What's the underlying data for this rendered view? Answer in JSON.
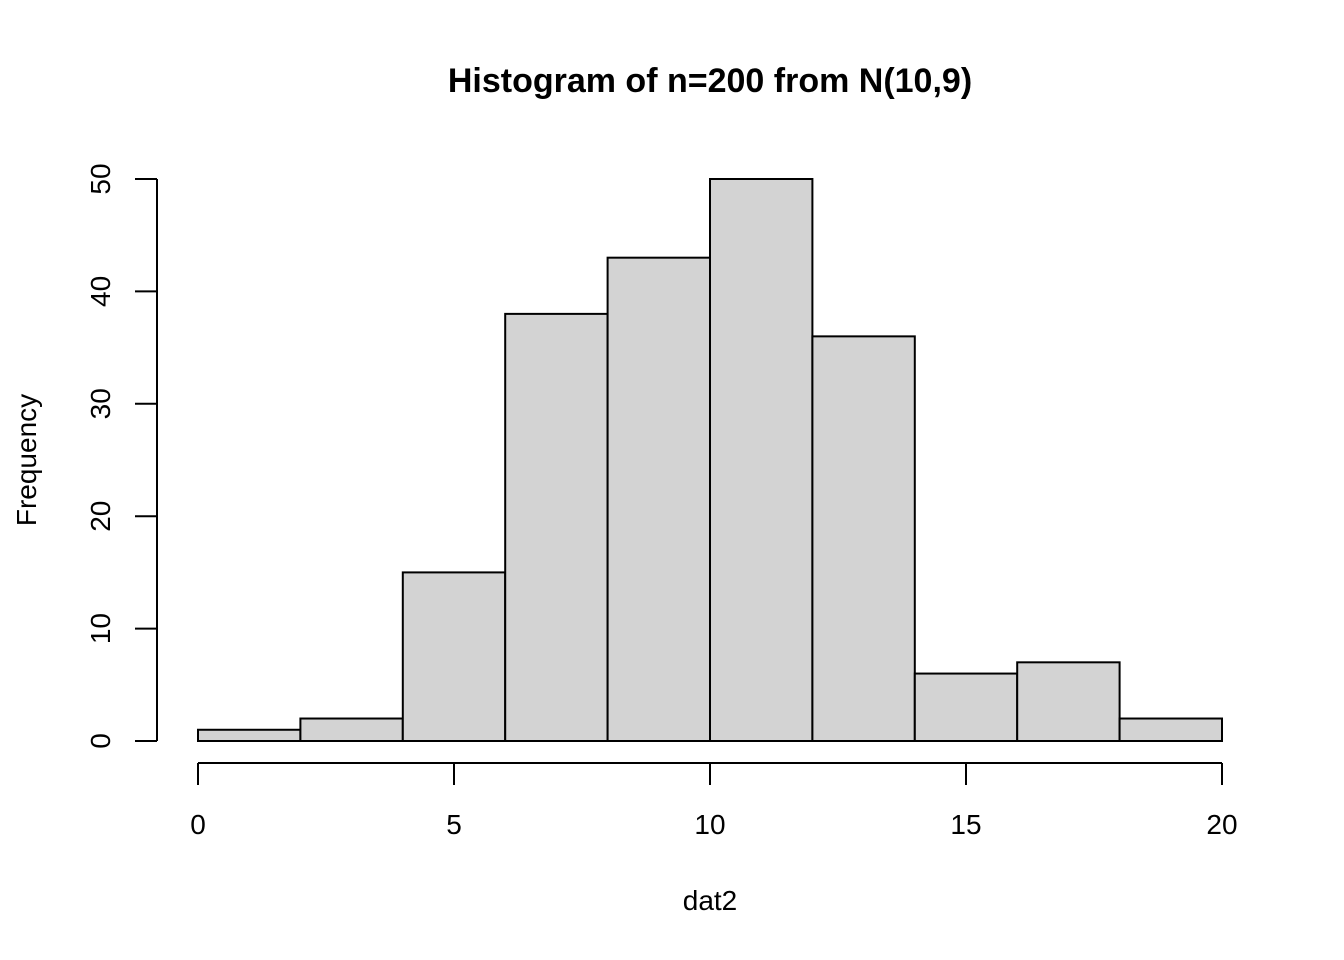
{
  "chart_data": {
    "type": "bar",
    "title": "Histogram of n=200 from N(10,9)",
    "xlabel": "dat2",
    "ylabel": "Frequency",
    "bins": [
      {
        "x0": 0,
        "x1": 2,
        "count": 1
      },
      {
        "x0": 2,
        "x1": 4,
        "count": 2
      },
      {
        "x0": 4,
        "x1": 6,
        "count": 15
      },
      {
        "x0": 6,
        "x1": 8,
        "count": 38
      },
      {
        "x0": 8,
        "x1": 10,
        "count": 43
      },
      {
        "x0": 10,
        "x1": 12,
        "count": 50
      },
      {
        "x0": 12,
        "x1": 14,
        "count": 36
      },
      {
        "x0": 14,
        "x1": 16,
        "count": 6
      },
      {
        "x0": 16,
        "x1": 18,
        "count": 7
      },
      {
        "x0": 18,
        "x1": 20,
        "count": 2
      }
    ],
    "xlim": [
      0,
      20
    ],
    "ylim": [
      0,
      50
    ],
    "x_ticks": [
      0,
      5,
      10,
      15,
      20
    ],
    "y_ticks": [
      0,
      10,
      20,
      30,
      40,
      50
    ],
    "bar_fill": "#d3d3d3",
    "bar_stroke": "#000000",
    "grid": false
  }
}
